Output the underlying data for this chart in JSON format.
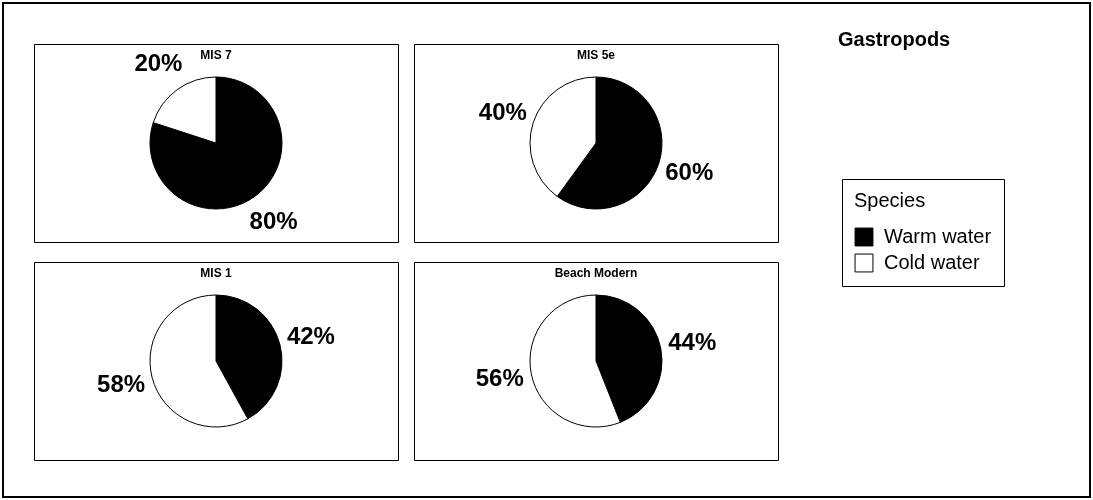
{
  "chart_data": [
    {
      "type": "pie",
      "title": "MIS 7",
      "categories": [
        null,
        null
      ],
      "values": [
        80,
        20
      ],
      "colors": [
        "#000000",
        "#ffffff"
      ],
      "value_labels": [
        "80%",
        "20%"
      ]
    },
    {
      "type": "pie",
      "title": "MIS 5e",
      "categories": [
        "Warm water",
        "Cold water"
      ],
      "values": [
        60,
        40
      ],
      "colors": [
        "#000000",
        "#ffffff"
      ],
      "value_labels": [
        "60%",
        "40%"
      ],
      "legend": "right",
      "legend_title": "Species"
    },
    {
      "type": "pie",
      "title": "MIS 1",
      "categories": [
        null,
        null
      ],
      "values": [
        42,
        58
      ],
      "colors": [
        "#000000",
        "#ffffff"
      ],
      "value_labels": [
        "42%",
        "58%"
      ]
    },
    {
      "type": "pie",
      "title": "Beach Modern",
      "categories": [
        null,
        null
      ],
      "values": [
        44,
        56
      ],
      "colors": [
        "#000000",
        "#ffffff"
      ],
      "value_labels": [
        "44%",
        "56%"
      ]
    },
    {
      "type": "other",
      "title": "Gastropods"
    }
  ]
}
